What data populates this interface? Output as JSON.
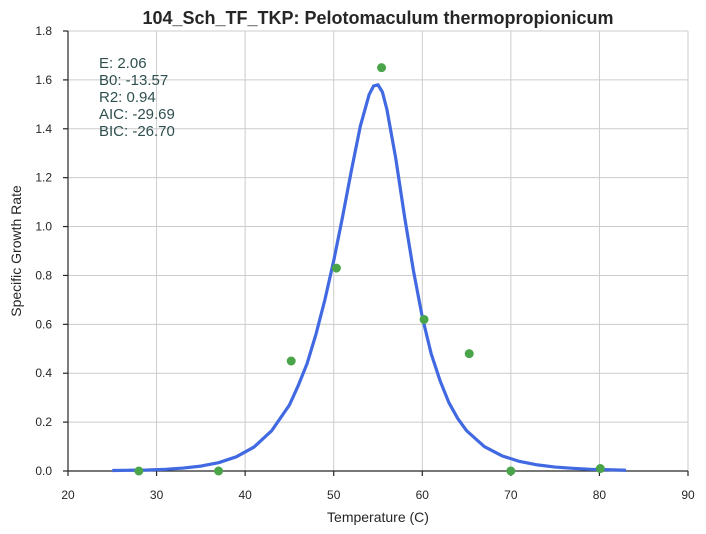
{
  "chart_data": {
    "type": "scatter",
    "title": "104_Sch_TF_TKP: Pelotomaculum thermopropionicum",
    "xlabel": "Temperature (C)",
    "ylabel": "Specific Growth Rate",
    "xlim": [
      20,
      90
    ],
    "ylim": [
      0,
      1.8
    ],
    "xticks": [
      "20",
      "30",
      "40",
      "50",
      "60",
      "70",
      "80",
      "90"
    ],
    "yticks": [
      "0.0",
      "0.2",
      "0.4",
      "0.6",
      "0.8",
      "1.0",
      "1.2",
      "1.4",
      "1.6",
      "1.8"
    ],
    "grid": true,
    "colors": {
      "points": "#4aa54a",
      "curve": "#4169e1"
    },
    "series": [
      {
        "type": "scatter",
        "x": [
          28,
          37,
          45.2,
          50.3,
          55.4,
          60.2,
          65.3,
          70,
          80.1
        ],
        "y": [
          0.0,
          0.0,
          0.45,
          0.83,
          1.65,
          0.62,
          0.48,
          0.0,
          0.01
        ]
      },
      {
        "type": "line",
        "x": [
          25,
          27,
          29,
          31,
          33,
          35,
          37,
          39,
          41,
          43,
          45,
          46,
          47,
          48,
          49,
          50,
          51,
          52,
          53,
          54,
          54.5,
          55,
          55.5,
          56,
          57,
          58,
          59,
          60,
          61,
          62,
          63,
          64,
          65,
          67,
          69,
          71,
          73,
          75,
          77,
          79,
          81,
          83
        ],
        "y": [
          0.002,
          0.003,
          0.004,
          0.007,
          0.012,
          0.02,
          0.034,
          0.058,
          0.098,
          0.165,
          0.27,
          0.35,
          0.44,
          0.56,
          0.7,
          0.86,
          1.04,
          1.23,
          1.41,
          1.54,
          1.575,
          1.58,
          1.55,
          1.48,
          1.28,
          1.04,
          0.82,
          0.63,
          0.48,
          0.37,
          0.28,
          0.215,
          0.165,
          0.1,
          0.062,
          0.039,
          0.025,
          0.016,
          0.011,
          0.007,
          0.005,
          0.003
        ]
      }
    ],
    "annotations": [
      "E:  2.06",
      "B0:  -13.57",
      "R2:  0.94",
      "AIC: -29.69",
      "BIC: -26.70"
    ]
  }
}
